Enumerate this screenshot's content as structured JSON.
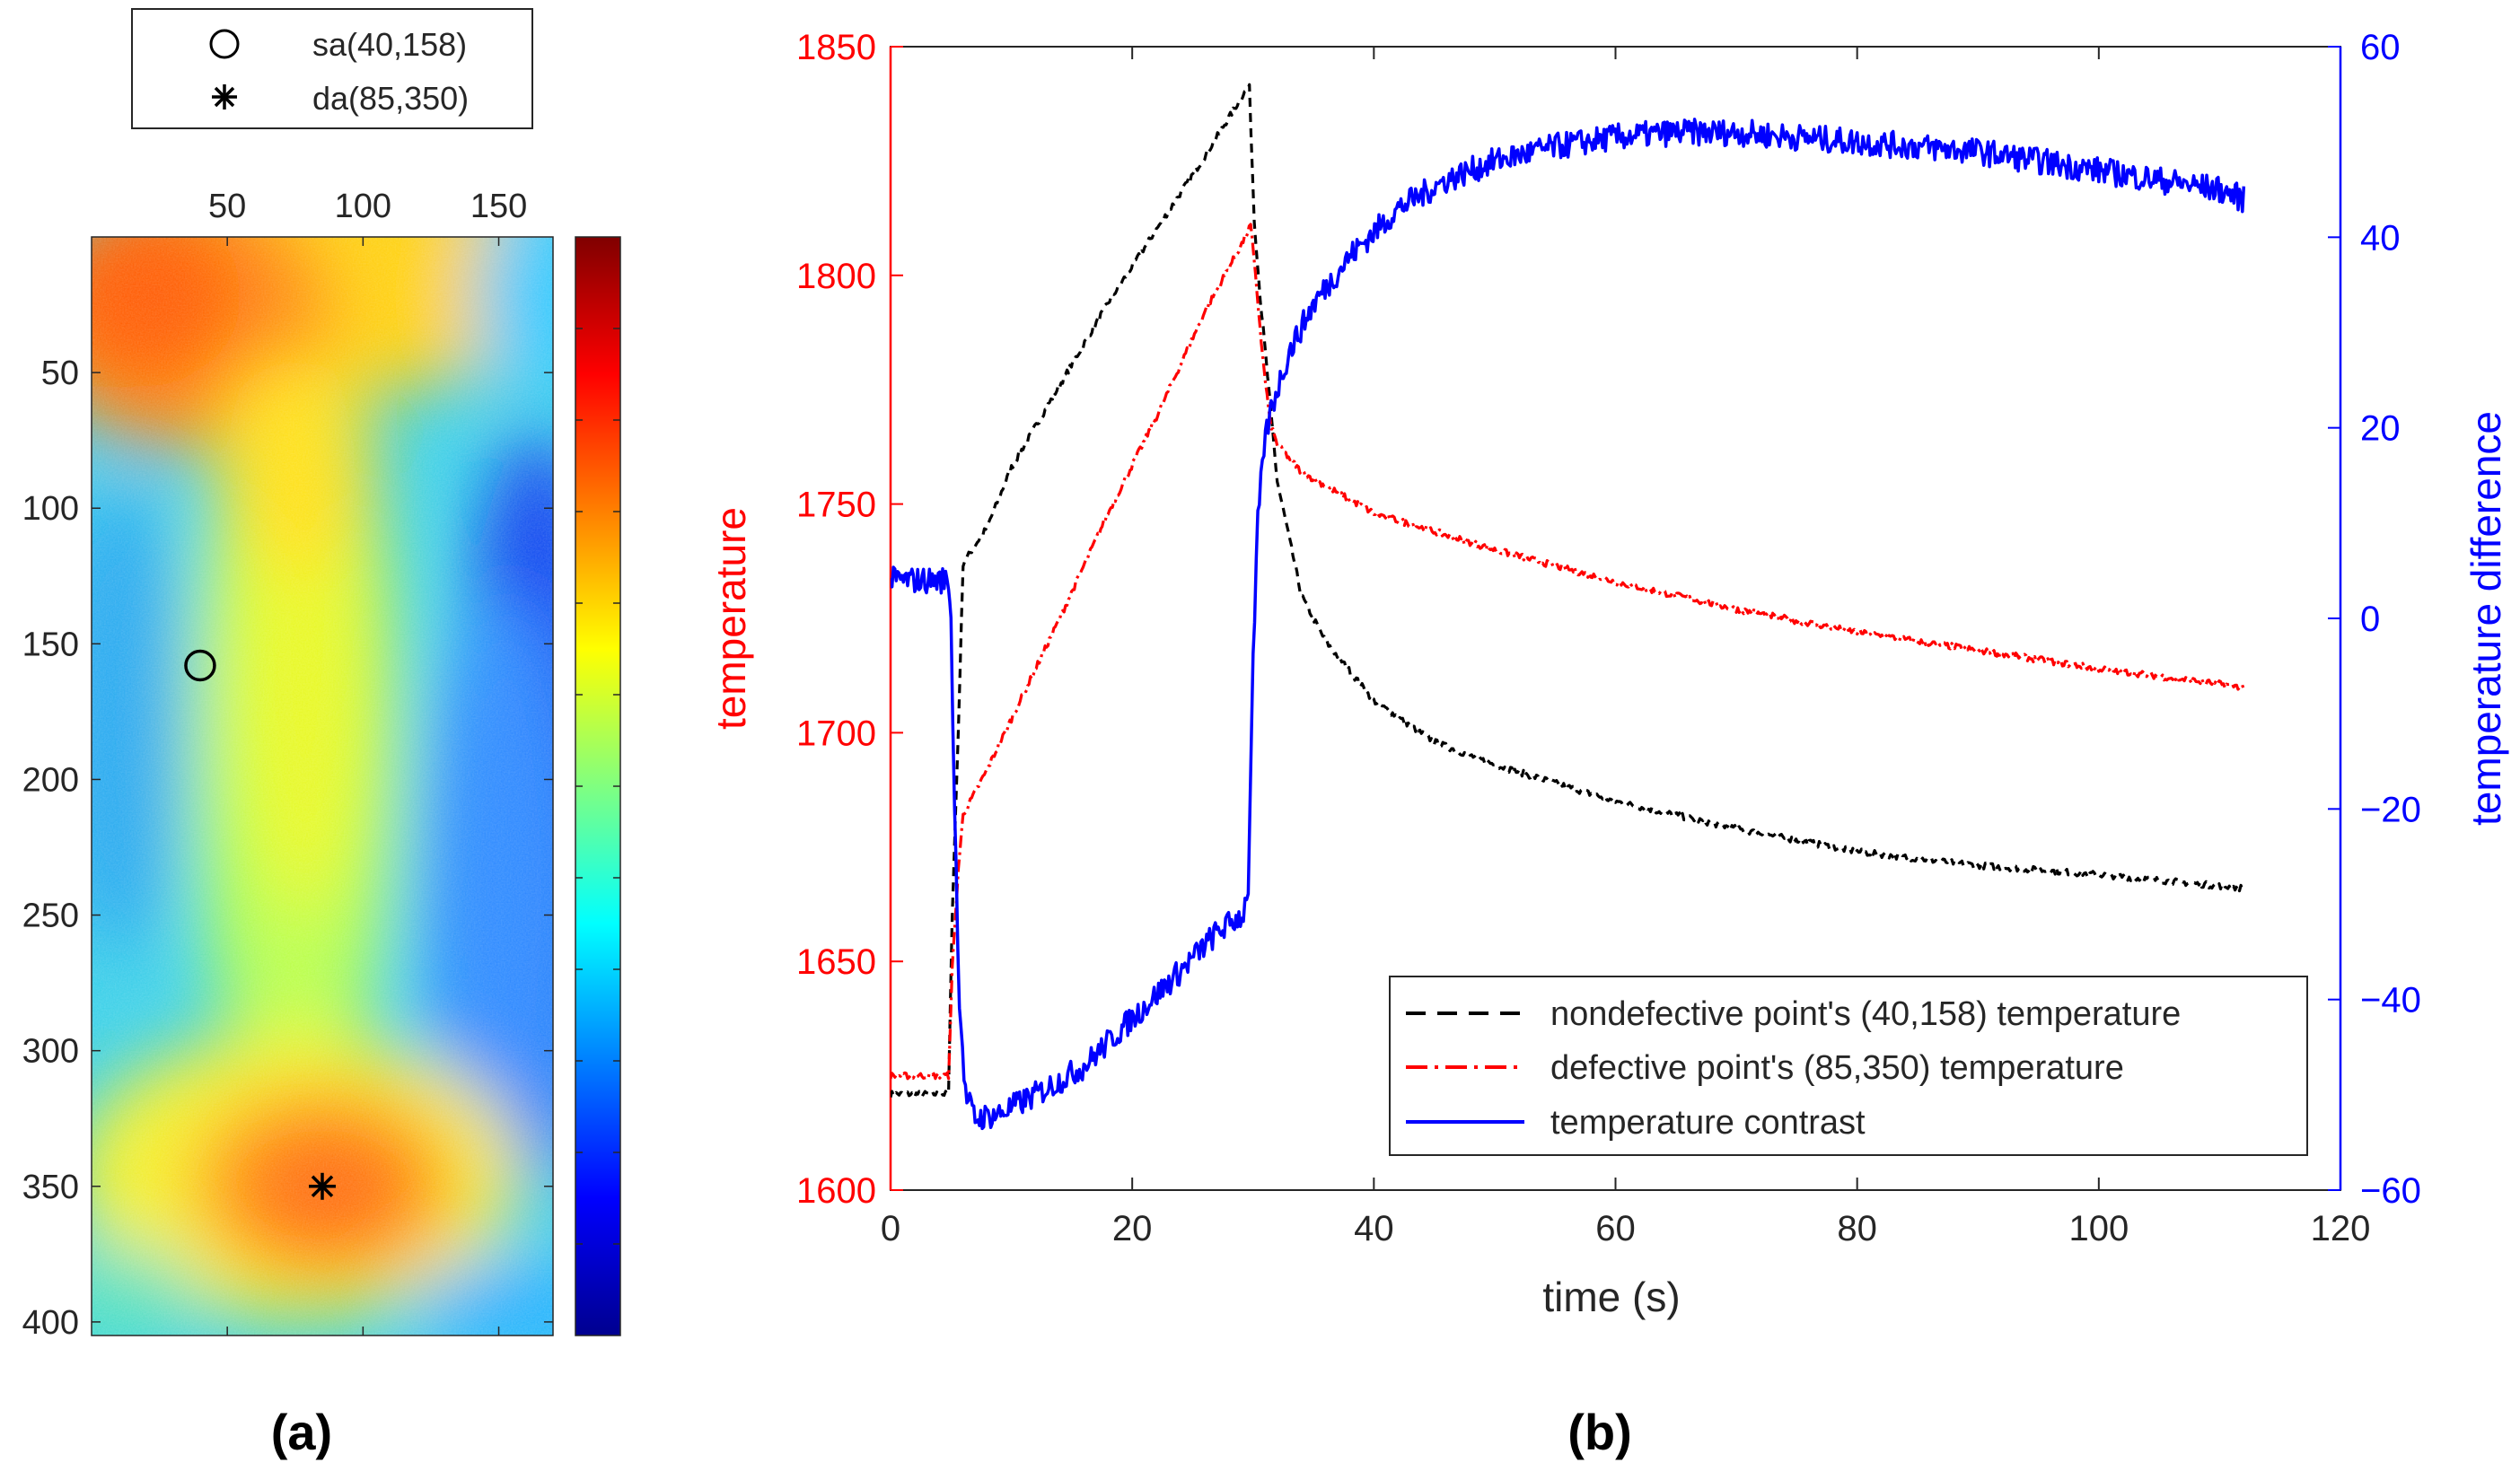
{
  "panel_labels": {
    "a": "(a)",
    "b": "(b)"
  },
  "colors": {
    "red_axis": "#ff0000",
    "blue_axis": "#0000ff",
    "black": "#000000",
    "grey_text": "#262626",
    "jet_stops": [
      "#00008f",
      "#0000ff",
      "#0080ff",
      "#00ffff",
      "#80ff80",
      "#ffff00",
      "#ff8000",
      "#ff0000",
      "#800000"
    ]
  },
  "legend_a": {
    "items": [
      {
        "marker": "circle-icon",
        "label": "sa(40,158)"
      },
      {
        "marker": "asterisk-icon",
        "label": "da(85,350)"
      }
    ]
  },
  "chart_data": [
    {
      "type": "heatmap",
      "panel": "(a)",
      "title": "",
      "xlabel": "",
      "ylabel": "",
      "xlim": [
        0,
        170
      ],
      "ylim": [
        405,
        0
      ],
      "x_ticks": [
        50,
        100,
        150
      ],
      "x_tick_labels": [
        "50",
        "100",
        "150"
      ],
      "y_ticks": [
        50,
        100,
        150,
        200,
        250,
        300,
        350,
        400
      ],
      "y_tick_labels": [
        "50",
        "100",
        "150",
        "200",
        "250",
        "300",
        "350",
        "400"
      ],
      "colormap": "jet",
      "colorbar_range": [
        0,
        1
      ],
      "colorbar_ticks": 12,
      "field_description": "Warm regions (red/orange) near the top-left (x≈10–60, y≈10–80) and around the defect (x≈85, y≈350); yellow/green band down the center (x≈70–110); cooler cyan/blue on the left edge (y≈100–300) and dark blue near the right edge (x≈150–170, y≈150–300).",
      "markers": [
        {
          "name": "sa",
          "x": 40,
          "y": 158,
          "symbol": "circle",
          "label": "sa(40,158)"
        },
        {
          "name": "da",
          "x": 85,
          "y": 350,
          "symbol": "asterisk",
          "label": "da(85,350)"
        }
      ]
    },
    {
      "type": "line",
      "panel": "(b)",
      "title": "",
      "xlabel": "time (s)",
      "ylabel": "temperature",
      "ylabel_right": "temperature difference",
      "xlim": [
        0,
        120
      ],
      "ylim": [
        1600,
        1850
      ],
      "ylim_right": [
        -60,
        60
      ],
      "x_ticks": [
        0,
        20,
        40,
        60,
        80,
        100,
        120
      ],
      "x_tick_labels": [
        "0",
        "20",
        "40",
        "60",
        "80",
        "100",
        "120"
      ],
      "y_ticks": [
        1600,
        1650,
        1700,
        1750,
        1800,
        1850
      ],
      "y_tick_labels": [
        "1600",
        "1650",
        "1700",
        "1750",
        "1800",
        "1850"
      ],
      "y_ticks_right": [
        -60,
        -40,
        -20,
        0,
        20,
        40,
        60
      ],
      "y_tick_labels_right": [
        "−60",
        "−40",
        "−20",
        "0",
        "20",
        "40",
        "60"
      ],
      "grid": false,
      "legend_position": "bottom-right",
      "series": [
        {
          "name": "nondefective point's (40,158) temperature",
          "axis": "left",
          "color": "#000000",
          "style": "dashed",
          "x": [
            0,
            2,
            4.8,
            5.1,
            5.6,
            6,
            8,
            10,
            14,
            18,
            22,
            26,
            29.3,
            29.7,
            30.1,
            30.6,
            31.2,
            32,
            34,
            36,
            40,
            45,
            50,
            55,
            60,
            70,
            80,
            90,
            100,
            112
          ],
          "y": [
            1621,
            1621,
            1621,
            1660,
            1700,
            1737,
            1745,
            1758,
            1776,
            1794,
            1810,
            1826,
            1840,
            1841,
            1812,
            1795,
            1778,
            1755,
            1730,
            1720,
            1707,
            1698,
            1693,
            1689,
            1685,
            1679,
            1674,
            1671,
            1669,
            1666
          ]
        },
        {
          "name": "defective point's (85,350) temperature",
          "axis": "left",
          "color": "#ff0000",
          "style": "dashdot",
          "x": [
            0,
            2,
            4.8,
            5.1,
            5.6,
            6,
            8,
            10,
            14,
            18,
            22,
            26,
            29.3,
            29.8,
            30.2,
            30.8,
            31.4,
            32,
            34,
            36,
            40,
            50,
            60,
            70,
            80,
            90,
            100,
            112
          ],
          "y": [
            1625,
            1625,
            1625,
            1648,
            1670,
            1682,
            1692,
            1703,
            1725,
            1748,
            1769,
            1792,
            1808,
            1811,
            1800,
            1782,
            1768,
            1763,
            1757,
            1754,
            1748,
            1740,
            1733,
            1727,
            1722,
            1718,
            1714,
            1710
          ]
        },
        {
          "name": "temperature contrast",
          "axis": "right",
          "color": "#0000ff",
          "style": "solid",
          "x": [
            0,
            2,
            4.8,
            5.0,
            5.3,
            5.7,
            6.2,
            7,
            9,
            12,
            16,
            20,
            24,
            27,
            29.2,
            29.6,
            30.0,
            30.4,
            30.9,
            31.5,
            32,
            33,
            35,
            38,
            42,
            46,
            50,
            55,
            60,
            65,
            70,
            75,
            80,
            85,
            90,
            95,
            100,
            105,
            110,
            112
          ],
          "y": [
            4,
            4,
            4,
            0,
            -20,
            -40,
            -50,
            -52.5,
            -52,
            -50,
            -47,
            -42,
            -37,
            -33,
            -31,
            -28,
            -5,
            10,
            18,
            22,
            24,
            28,
            33,
            38,
            43,
            46,
            48,
            49.5,
            50.5,
            51,
            51,
            50.5,
            50,
            49.5,
            49,
            48,
            47,
            46,
            45,
            44
          ]
        }
      ]
    }
  ]
}
